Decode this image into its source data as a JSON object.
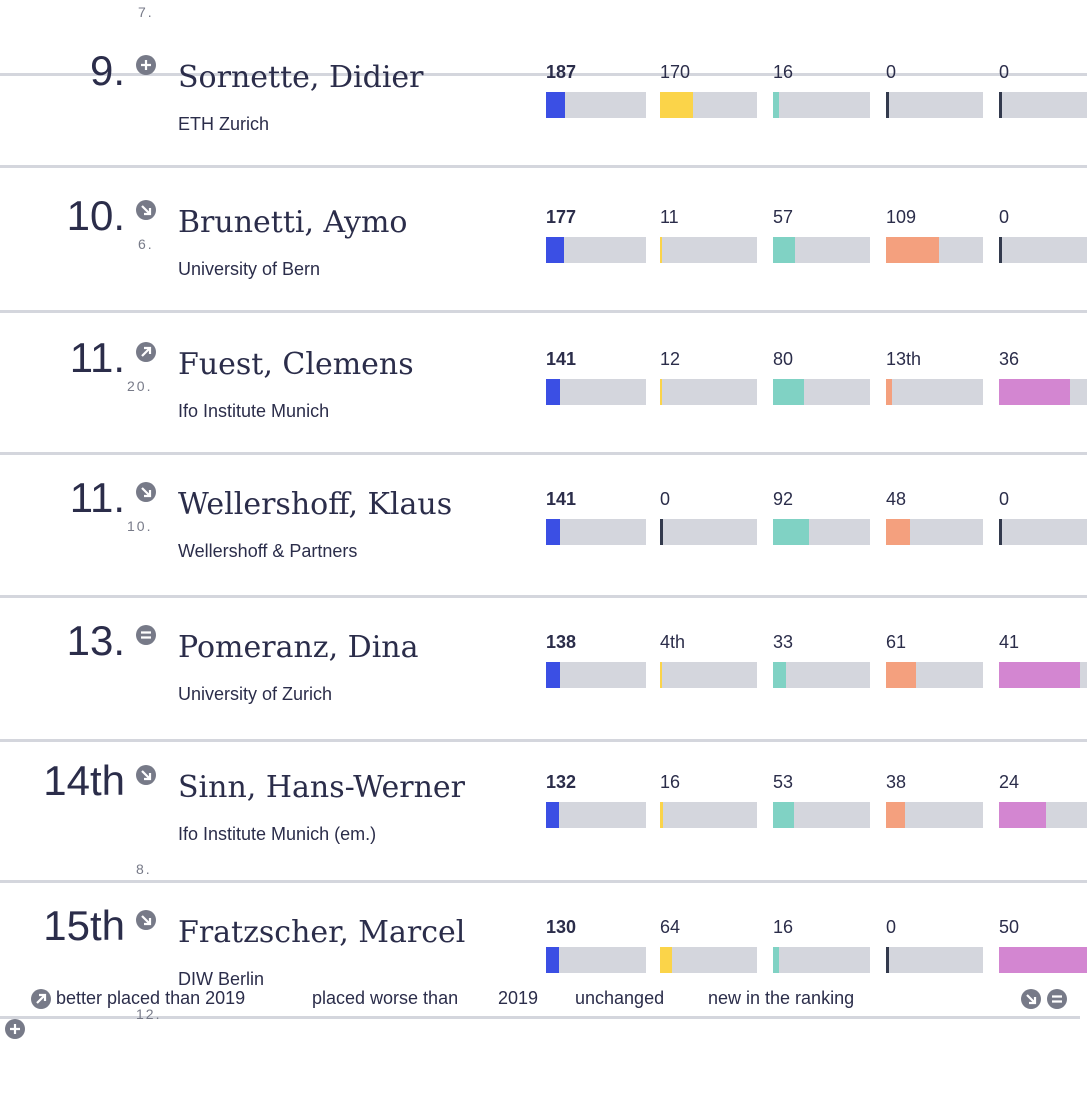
{
  "top_fragment": "7.",
  "rows": [
    {
      "rank": "9.",
      "icon": "plus",
      "previous": null,
      "name": "Sornette, Didier",
      "institution": "ETH Zurich",
      "values": [
        187,
        170,
        16,
        0,
        0
      ]
    },
    {
      "rank": "10.",
      "icon": "down",
      "previous": "6.",
      "name": "Brunetti, Aymo",
      "institution": "University of Bern",
      "values": [
        177,
        11,
        57,
        109,
        0
      ]
    },
    {
      "rank": "11.",
      "icon": "up",
      "previous": "20.",
      "name": "Fuest, Clemens",
      "institution": "Ifo Institute Munich",
      "values": [
        141,
        12,
        80,
        {
          "value": 13,
          "label": "13th"
        },
        36
      ]
    },
    {
      "rank": "11.",
      "icon": "down",
      "previous": "10.",
      "name": "Wellershoff, Klaus",
      "institution": "Wellershoff & Partners",
      "values": [
        141,
        0,
        92,
        48,
        0
      ]
    },
    {
      "rank": "13.",
      "icon": "equal",
      "previous": null,
      "name": "Pomeranz, Dina",
      "institution": "University of Zurich",
      "values": [
        138,
        {
          "value": 4,
          "label": "4th"
        },
        33,
        61,
        41
      ]
    },
    {
      "rank": "14th",
      "icon": "down",
      "previous": "8.",
      "name": "Sinn, Hans-Werner",
      "institution": "Ifo Institute Munich (em.)",
      "values": [
        132,
        16,
        53,
        38,
        24
      ]
    },
    {
      "rank": "15th",
      "icon": "down",
      "previous": "12.",
      "name": "Fratzscher, Marcel",
      "institution": "DIW Berlin",
      "values": [
        130,
        64,
        16,
        0,
        50
      ]
    }
  ],
  "column_colors": [
    "#3b4fe4",
    "#fbd449",
    "#80d2c4",
    "#f4a07e",
    "#d386d1"
  ],
  "legend": [
    "better placed than 2019",
    "placed worse than",
    "2019",
    "unchanged",
    "new in the ranking"
  ]
}
